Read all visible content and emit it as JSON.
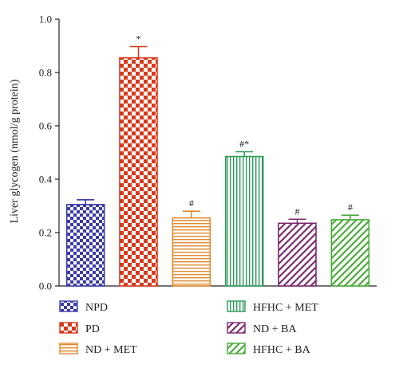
{
  "chart_data": {
    "type": "bar",
    "title": "",
    "xlabel": "",
    "ylabel": "Liver glycogen (nmol/g protein)",
    "ylim": [
      0,
      1.0
    ],
    "yticks": [
      "0.0",
      "0.2",
      "0.4",
      "0.6",
      "0.8",
      "1.0"
    ],
    "grid": false,
    "legend": "bottom",
    "categories": [
      "NPD",
      "PD",
      "ND + MET",
      "HFHC + MET",
      "ND + BA",
      "HFHC + BA"
    ],
    "values": [
      0.305,
      0.855,
      0.255,
      0.485,
      0.235,
      0.248
    ],
    "errors": [
      0.018,
      0.042,
      0.025,
      0.018,
      0.015,
      0.017
    ],
    "annotations": [
      "",
      "*",
      "#",
      "#*",
      "#",
      "#"
    ],
    "colors": [
      "#3b3ba8",
      "#d63a1d",
      "#e08a2e",
      "#2f9a5c",
      "#7a2a6e",
      "#4bab3a"
    ],
    "patterns": [
      "checker-small",
      "checker-large",
      "horizontal-lines",
      "vertical-lines",
      "diagonal-lines",
      "diagonal-lines"
    ]
  }
}
